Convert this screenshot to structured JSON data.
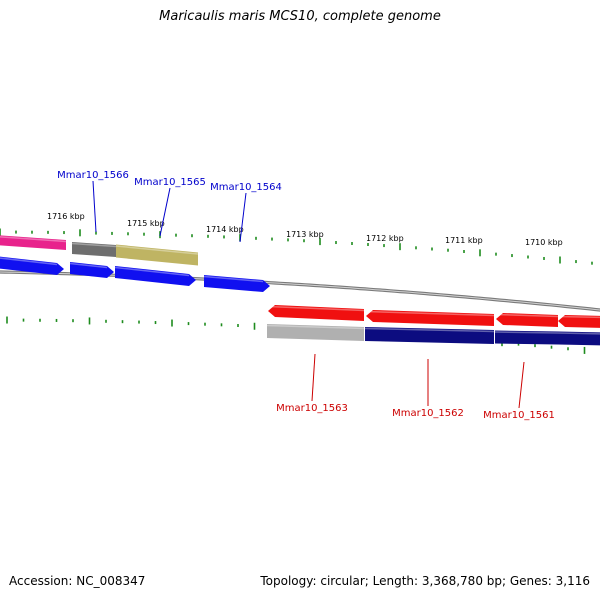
{
  "title": "Maricaulis maris MCS10, complete genome",
  "footer": {
    "accession": "Accession: NC_008347",
    "summary": "Topology: circular; Length: 3,368,780 bp; Genes: 3,116"
  },
  "colors": {
    "backbone": "#8c8c8c",
    "tick": "#1e8c1e",
    "label_forward": "#0000cc",
    "label_reverse": "#cc0000",
    "magenta": "#e8238c",
    "dark_gray": "#6e6e6e",
    "olive": "#bfb463",
    "blue": "#1010f0",
    "red": "#f01010",
    "light_gray": "#b0b0b0",
    "navy": "#0c0c80"
  },
  "scale_labels": [
    "1716 kbp",
    "1715 kbp",
    "1714 kbp",
    "1713 kbp",
    "1712 kbp",
    "1711 kbp",
    "1710 kbp"
  ],
  "gene_labels": [
    {
      "text": "Mmar10_1566",
      "strand": "forward"
    },
    {
      "text": "Mmar10_1565",
      "strand": "forward"
    },
    {
      "text": "Mmar10_1564",
      "strand": "forward"
    },
    {
      "text": "Mmar10_1563",
      "strand": "reverse"
    },
    {
      "text": "Mmar10_1562",
      "strand": "reverse"
    },
    {
      "text": "Mmar10_1561",
      "strand": "reverse"
    }
  ],
  "features": [
    {
      "name": "feature-magenta",
      "color": "magenta"
    },
    {
      "name": "feature-gray-1566",
      "color": "dark_gray"
    },
    {
      "name": "feature-olive-1565",
      "color": "olive"
    },
    {
      "name": "feature-blue-1",
      "color": "blue"
    },
    {
      "name": "feature-blue-2",
      "color": "blue"
    },
    {
      "name": "feature-blue-3",
      "color": "blue"
    },
    {
      "name": "feature-blue-4",
      "color": "blue"
    },
    {
      "name": "feature-red-1",
      "color": "red"
    },
    {
      "name": "feature-red-2",
      "color": "red"
    },
    {
      "name": "feature-red-3",
      "color": "red"
    },
    {
      "name": "feature-red-4",
      "color": "red"
    },
    {
      "name": "feature-lightgray-1563",
      "color": "light_gray"
    },
    {
      "name": "feature-navy-1562",
      "color": "navy"
    },
    {
      "name": "feature-navy-1561",
      "color": "navy"
    },
    {
      "name": "feature-navy-4",
      "color": "navy"
    }
  ]
}
